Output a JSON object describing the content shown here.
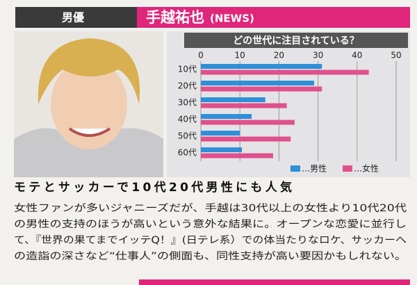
{
  "header": {
    "label": "男優",
    "name": "手越祐也",
    "group": "(NEWS)"
  },
  "chart_data": {
    "type": "hbar",
    "title": "どの世代に注目されている？",
    "categories": [
      "10代",
      "20代",
      "30代",
      "40代",
      "50代",
      "60代"
    ],
    "series": [
      {
        "name": "…男性",
        "color": "#2f8fd8",
        "values": [
          31,
          29,
          16.5,
          13,
          10,
          10.5
        ]
      },
      {
        "name": "…女性",
        "color": "#e0508c",
        "values": [
          43,
          31,
          22,
          24,
          23,
          18.5
        ]
      }
    ],
    "xlim": [
      0,
      50
    ],
    "xticks": [
      0,
      10,
      20,
      30,
      40,
      50
    ],
    "grid": true
  },
  "headline": "モテとサッカーで10代20代男性にも人気",
  "body": [
    "女性ファンが多いジャニーズだが、手越は30代以上の女性より10代20代",
    "の男性の支持のほうが高いという意外な結果に。オープンな恋愛に並行し",
    "て、『世界の果てまでイッテQ！』(日テレ系）での体当たりなロケ、サッカーへ",
    "の造詣の深さなど“仕事人”の側面も、同性支持が高い要因かもしれない。"
  ]
}
